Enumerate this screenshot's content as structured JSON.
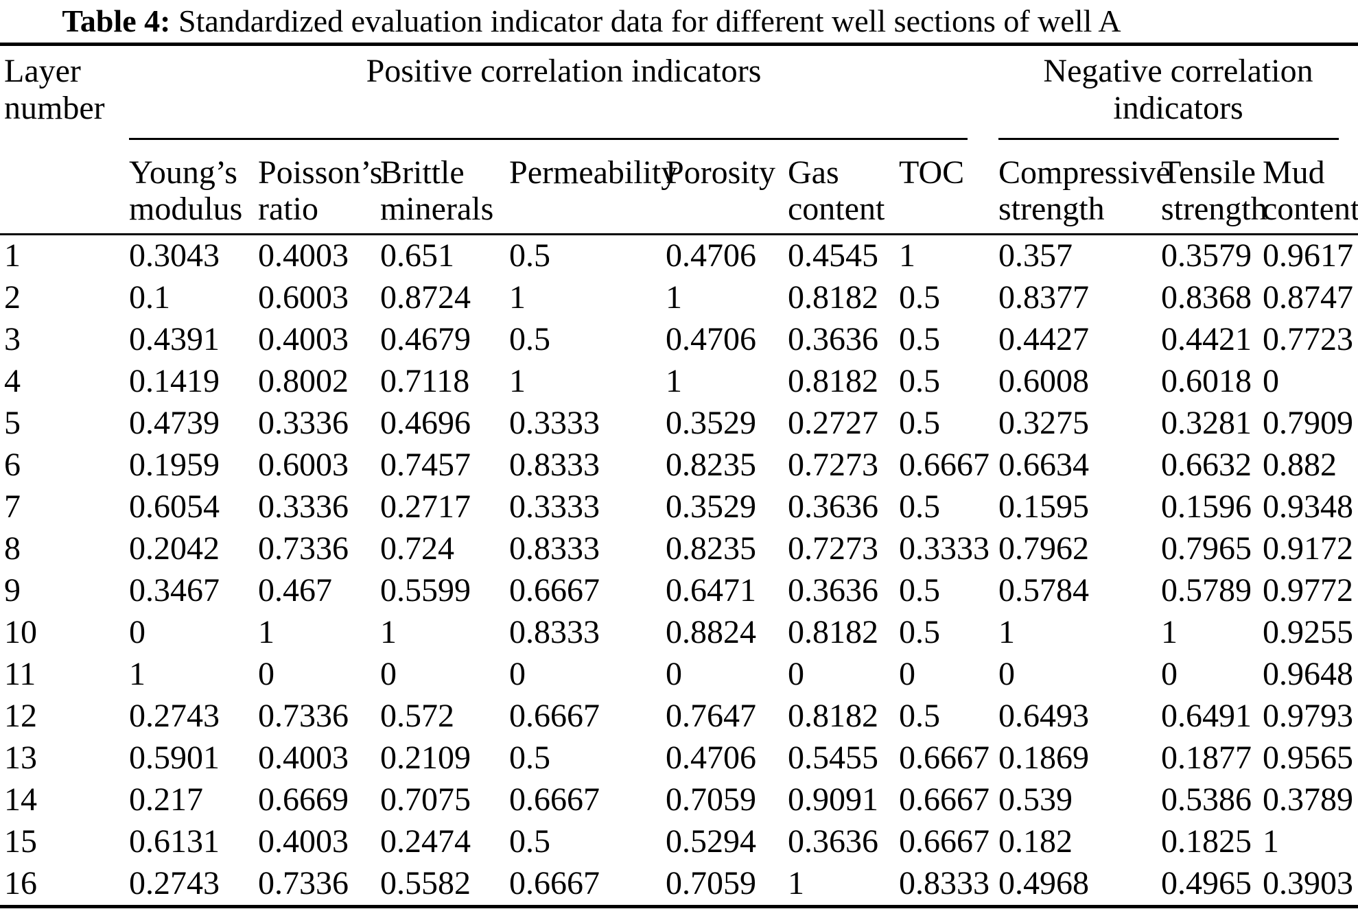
{
  "caption": {
    "label": "Table 4:",
    "text": "Standardized evaluation indicator data for different well sections of well A"
  },
  "table": {
    "corner_header": "Layer number",
    "groups": [
      {
        "label": "Positive correlation indicators"
      },
      {
        "label": "Negative correlation indicators"
      }
    ],
    "columns": [
      "Young’s modulus",
      "Poisson’s ratio",
      "Brittle minerals",
      "Permeability",
      "Porosity",
      "Gas content",
      "TOC",
      "Compressive strength",
      "Tensile strength",
      "Mud content"
    ],
    "rows": [
      {
        "layer": "1",
        "values": [
          "0.3043",
          "0.4003",
          "0.651",
          "0.5",
          "0.4706",
          "0.4545",
          "1",
          "0.357",
          "0.3579",
          "0.9617"
        ]
      },
      {
        "layer": "2",
        "values": [
          "0.1",
          "0.6003",
          "0.8724",
          "1",
          "1",
          "0.8182",
          "0.5",
          "0.8377",
          "0.8368",
          "0.8747"
        ]
      },
      {
        "layer": "3",
        "values": [
          "0.4391",
          "0.4003",
          "0.4679",
          "0.5",
          "0.4706",
          "0.3636",
          "0.5",
          "0.4427",
          "0.4421",
          "0.7723"
        ]
      },
      {
        "layer": "4",
        "values": [
          "0.1419",
          "0.8002",
          "0.7118",
          "1",
          "1",
          "0.8182",
          "0.5",
          "0.6008",
          "0.6018",
          "0"
        ]
      },
      {
        "layer": "5",
        "values": [
          "0.4739",
          "0.3336",
          "0.4696",
          "0.3333",
          "0.3529",
          "0.2727",
          "0.5",
          "0.3275",
          "0.3281",
          "0.7909"
        ]
      },
      {
        "layer": "6",
        "values": [
          "0.1959",
          "0.6003",
          "0.7457",
          "0.8333",
          "0.8235",
          "0.7273",
          "0.6667",
          "0.6634",
          "0.6632",
          "0.882"
        ]
      },
      {
        "layer": "7",
        "values": [
          "0.6054",
          "0.3336",
          "0.2717",
          "0.3333",
          "0.3529",
          "0.3636",
          "0.5",
          "0.1595",
          "0.1596",
          "0.9348"
        ]
      },
      {
        "layer": "8",
        "values": [
          "0.2042",
          "0.7336",
          "0.724",
          "0.8333",
          "0.8235",
          "0.7273",
          "0.3333",
          "0.7962",
          "0.7965",
          "0.9172"
        ]
      },
      {
        "layer": "9",
        "values": [
          "0.3467",
          "0.467",
          "0.5599",
          "0.6667",
          "0.6471",
          "0.3636",
          "0.5",
          "0.5784",
          "0.5789",
          "0.9772"
        ]
      },
      {
        "layer": "10",
        "values": [
          "0",
          "1",
          "1",
          "0.8333",
          "0.8824",
          "0.8182",
          "0.5",
          "1",
          "1",
          "0.9255"
        ]
      },
      {
        "layer": "11",
        "values": [
          "1",
          "0",
          "0",
          "0",
          "0",
          "0",
          "0",
          "0",
          "0",
          "0.9648"
        ]
      },
      {
        "layer": "12",
        "values": [
          "0.2743",
          "0.7336",
          "0.572",
          "0.6667",
          "0.7647",
          "0.8182",
          "0.5",
          "0.6493",
          "0.6491",
          "0.9793"
        ]
      },
      {
        "layer": "13",
        "values": [
          "0.5901",
          "0.4003",
          "0.2109",
          "0.5",
          "0.4706",
          "0.5455",
          "0.6667",
          "0.1869",
          "0.1877",
          "0.9565"
        ]
      },
      {
        "layer": "14",
        "values": [
          "0.217",
          "0.6669",
          "0.7075",
          "0.6667",
          "0.7059",
          "0.9091",
          "0.6667",
          "0.539",
          "0.5386",
          "0.3789"
        ]
      },
      {
        "layer": "15",
        "values": [
          "0.6131",
          "0.4003",
          "0.2474",
          "0.5",
          "0.5294",
          "0.3636",
          "0.6667",
          "0.182",
          "0.1825",
          "1"
        ]
      },
      {
        "layer": "16",
        "values": [
          "0.2743",
          "0.7336",
          "0.5582",
          "0.6667",
          "0.7059",
          "1",
          "0.8333",
          "0.4968",
          "0.4965",
          "0.3903"
        ]
      }
    ]
  }
}
